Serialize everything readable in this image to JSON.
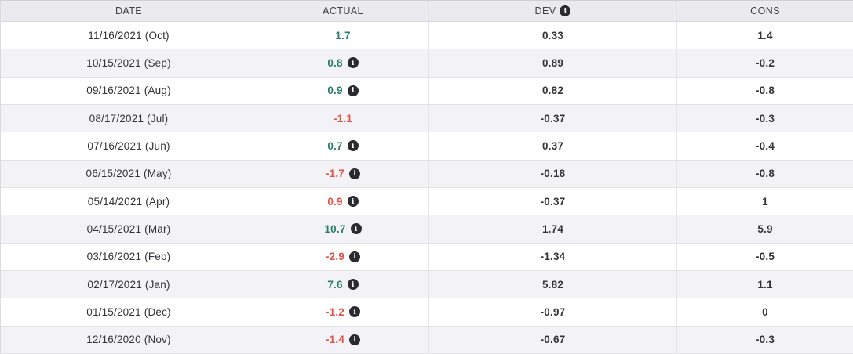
{
  "colors": {
    "positive": "#2a7d68",
    "negative": "#e0554a",
    "header_bg": "#eaeaef",
    "row_alt_bg": "#f2f2f7",
    "row_border": "#e2e2e7",
    "header_border": "#d6d6db",
    "table_top_border": "#cfcfd4",
    "table_left_border": "#dadadf",
    "col_border": "#e4e4e9",
    "header_text": "#404046",
    "body_text": "#333338",
    "icon_bg": "#2b2b2f"
  },
  "icons": {
    "info_glyph": "i"
  },
  "table": {
    "columns": [
      {
        "key": "date",
        "label": "DATE"
      },
      {
        "key": "actual",
        "label": "ACTUAL"
      },
      {
        "key": "dev",
        "label": "DEV",
        "has_info_icon": true
      },
      {
        "key": "cons",
        "label": "CONS"
      }
    ],
    "rows": [
      {
        "date": "11/16/2021 (Oct)",
        "actual": "1.7",
        "trend": "positive",
        "has_info_icon": false,
        "dev": "0.33",
        "cons": "1.4"
      },
      {
        "date": "10/15/2021 (Sep)",
        "actual": "0.8",
        "trend": "positive",
        "has_info_icon": true,
        "dev": "0.89",
        "cons": "-0.2"
      },
      {
        "date": "09/16/2021 (Aug)",
        "actual": "0.9",
        "trend": "positive",
        "has_info_icon": true,
        "dev": "0.82",
        "cons": "-0.8"
      },
      {
        "date": "08/17/2021 (Jul)",
        "actual": "-1.1",
        "trend": "negative",
        "has_info_icon": false,
        "dev": "-0.37",
        "cons": "-0.3"
      },
      {
        "date": "07/16/2021 (Jun)",
        "actual": "0.7",
        "trend": "positive",
        "has_info_icon": true,
        "dev": "0.37",
        "cons": "-0.4"
      },
      {
        "date": "06/15/2021 (May)",
        "actual": "-1.7",
        "trend": "negative",
        "has_info_icon": true,
        "dev": "-0.18",
        "cons": "-0.8"
      },
      {
        "date": "05/14/2021 (Apr)",
        "actual": "0.9",
        "trend": "negative",
        "has_info_icon": true,
        "dev": "-0.37",
        "cons": "1"
      },
      {
        "date": "04/15/2021 (Mar)",
        "actual": "10.7",
        "trend": "positive",
        "has_info_icon": true,
        "dev": "1.74",
        "cons": "5.9"
      },
      {
        "date": "03/16/2021 (Feb)",
        "actual": "-2.9",
        "trend": "negative",
        "has_info_icon": true,
        "dev": "-1.34",
        "cons": "-0.5"
      },
      {
        "date": "02/17/2021 (Jan)",
        "actual": "7.6",
        "trend": "positive",
        "has_info_icon": true,
        "dev": "5.82",
        "cons": "1.1"
      },
      {
        "date": "01/15/2021 (Dec)",
        "actual": "-1.2",
        "trend": "negative",
        "has_info_icon": true,
        "dev": "-0.97",
        "cons": "0"
      },
      {
        "date": "12/16/2020 (Nov)",
        "actual": "-1.4",
        "trend": "negative",
        "has_info_icon": true,
        "dev": "-0.67",
        "cons": "-0.3"
      }
    ]
  }
}
